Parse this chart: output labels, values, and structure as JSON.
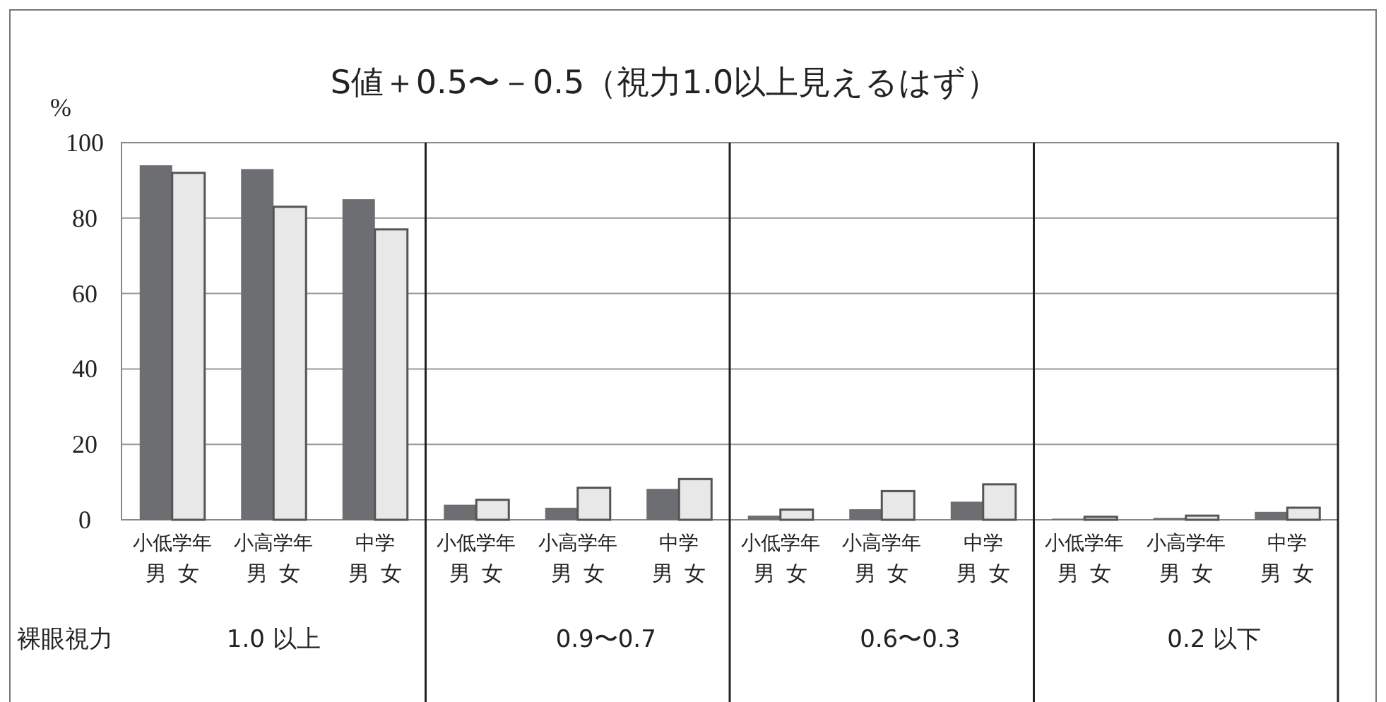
{
  "chart_data": {
    "type": "bar",
    "title": "S値＋0.5〜－0.5（視力1.0以上見えるはず）",
    "ylabel": "%",
    "categories": [
      "小低学年",
      "小高学年",
      "中学",
      "小低学年",
      "小高学年",
      "中学",
      "小低学年",
      "小高学年",
      "中学",
      "小低学年",
      "小高学年",
      "中学"
    ],
    "series": [
      {
        "name": "男",
        "color": "#6d6e72",
        "values": [
          94,
          93,
          85,
          4.0,
          3.2,
          8.2,
          1.1,
          2.8,
          4.8,
          0.3,
          0.5,
          2.1
        ]
      },
      {
        "name": "女",
        "color": "#e8e8e8",
        "values": [
          92,
          83,
          77,
          5.3,
          8.5,
          10.8,
          2.7,
          7.6,
          9.4,
          0.8,
          1.1,
          3.2
        ]
      }
    ],
    "ylim": [
      0,
      100
    ],
    "yticks": [
      0,
      20,
      40,
      60,
      80,
      100
    ],
    "grid": "y",
    "annotations": [
      "裸眼視力",
      "1.0 以上",
      "0.9〜0.7",
      "0.6〜0.3",
      "0.2 以下"
    ]
  }
}
